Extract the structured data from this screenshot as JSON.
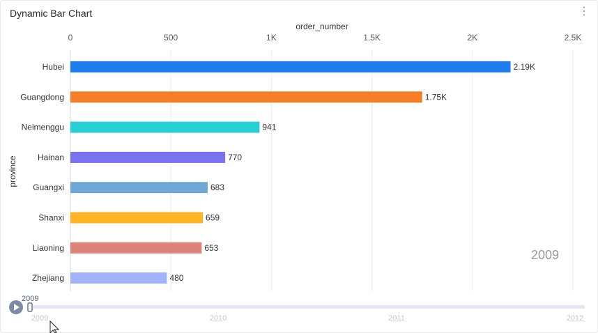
{
  "panel": {
    "title": "Dynamic Bar Chart",
    "menu_icon": "more-vertical-icon"
  },
  "chart_data": {
    "type": "bar",
    "orientation": "horizontal",
    "xlabel": "order_number",
    "ylabel": "province",
    "xlim": [
      0,
      2500
    ],
    "x_ticks": [
      0,
      500,
      1000,
      1500,
      2000,
      2500
    ],
    "x_tick_labels": [
      "0",
      "500",
      "1K",
      "1.5K",
      "2K",
      "2.5K"
    ],
    "x_axis_position": "top",
    "grid": true,
    "categories": [
      "Hubei",
      "Guangdong",
      "Neimenggu",
      "Hainan",
      "Guangxi",
      "Shanxi",
      "Liaoning",
      "Zhejiang"
    ],
    "values": [
      2190,
      1750,
      941,
      770,
      683,
      659,
      653,
      480
    ],
    "value_labels": [
      "2.19K",
      "1.75K",
      "941",
      "770",
      "683",
      "659",
      "653",
      "480"
    ],
    "colors": [
      "#1f7df0",
      "#f77d27",
      "#27cfd6",
      "#7a73f0",
      "#6fa8d6",
      "#ffb526",
      "#dd8379",
      "#9fb4fa"
    ],
    "watermark": "2009"
  },
  "timeline": {
    "current": "2009",
    "years": [
      "2009",
      "2010",
      "2011",
      "2012"
    ],
    "play_icon": "play-icon",
    "track_color": "#e4e7f3",
    "button_color": "#7d89a6"
  },
  "cursor_icon": "mouse-pointer-icon"
}
